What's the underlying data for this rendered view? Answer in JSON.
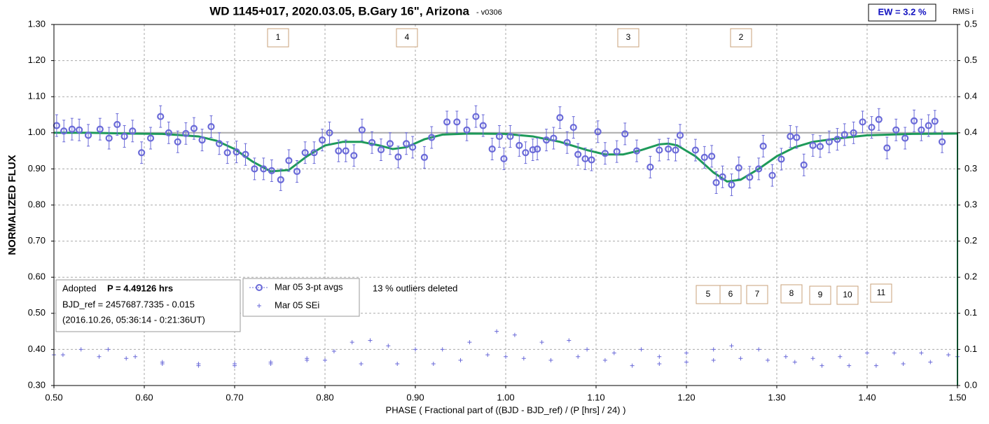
{
  "chart_data": {
    "type": "scatter",
    "title": "WD 1145+017, 2020.03.05, B.Gary 16\", Arizona",
    "subtitle": "-  v0306",
    "ew_label": "EW = 3.2 %",
    "y2_title": "RMS i",
    "xlabel": "PHASE ( Fractional part of ((BJD - BJD_ref) / (P [hrs] / 24) )",
    "ylabel": "NORMALIZED FLUX",
    "xlim": [
      0.5,
      1.5
    ],
    "xticks": [
      {
        "value": 0.5,
        "label": "0.50"
      },
      {
        "value": 0.6,
        "label": "0.60"
      },
      {
        "value": 0.7,
        "label": "0.70"
      },
      {
        "value": 0.8,
        "label": "0.80"
      },
      {
        "value": 0.9,
        "label": "0.90"
      },
      {
        "value": 1.0,
        "label": "1.00"
      },
      {
        "value": 1.1,
        "label": "1.10"
      },
      {
        "value": 1.2,
        "label": "1.20"
      },
      {
        "value": 1.3,
        "label": "1.30"
      },
      {
        "value": 1.4,
        "label": "1.40"
      },
      {
        "value": 1.5,
        "label": "1.50"
      }
    ],
    "ylim": [
      0.3,
      1.3
    ],
    "yticks": [
      {
        "value": 0.3,
        "label": "0.30"
      },
      {
        "value": 0.4,
        "label": "0.40"
      },
      {
        "value": 0.5,
        "label": "0.50"
      },
      {
        "value": 0.6,
        "label": "0.60"
      },
      {
        "value": 0.7,
        "label": "0.70"
      },
      {
        "value": 0.8,
        "label": "0.80"
      },
      {
        "value": 0.9,
        "label": "0.90"
      },
      {
        "value": 1.0,
        "label": "1.00"
      },
      {
        "value": 1.1,
        "label": "1.10"
      },
      {
        "value": 1.2,
        "label": "1.20"
      },
      {
        "value": 1.3,
        "label": "1.30"
      }
    ],
    "y2lim": [
      0,
      0.5
    ],
    "y2ticks": [
      {
        "value": 0,
        "label": "0.0"
      },
      {
        "value": 0.05,
        "label": "0.1"
      },
      {
        "value": 0.1,
        "label": "0.1"
      },
      {
        "value": 0.15,
        "label": "0.2"
      },
      {
        "value": 0.2,
        "label": "0.2"
      },
      {
        "value": 0.25,
        "label": "0.3"
      },
      {
        "value": 0.3,
        "label": "0.3"
      },
      {
        "value": 0.35,
        "label": "0.4"
      },
      {
        "value": 0.4,
        "label": "0.4"
      },
      {
        "value": 0.45,
        "label": "0.5"
      },
      {
        "value": 0.5,
        "label": "0.5"
      }
    ],
    "grid": true,
    "reference_line": 1.0,
    "series": [
      {
        "name": "Mar 05 3-pt avgs",
        "color": "#6a6ad8",
        "marker": "circle",
        "error": 0.03,
        "x": [
          0.503,
          0.511,
          0.52,
          0.528,
          0.538,
          0.551,
          0.561,
          0.57,
          0.578,
          0.587,
          0.597,
          0.607,
          0.618,
          0.627,
          0.637,
          0.646,
          0.655,
          0.664,
          0.674,
          0.683,
          0.692,
          0.702,
          0.712,
          0.722,
          0.732,
          0.741,
          0.751,
          0.76,
          0.769,
          0.778,
          0.788,
          0.797,
          0.805,
          0.815,
          0.823,
          0.832,
          0.841,
          0.852,
          0.862,
          0.872,
          0.881,
          0.89,
          0.897,
          0.91,
          0.918,
          0.935,
          0.946,
          0.957,
          0.967,
          0.975,
          0.985,
          0.993,
          0.998,
          1.005,
          1.015,
          1.022,
          1.03,
          1.035,
          1.045,
          1.053,
          1.06,
          1.068,
          1.075,
          1.08,
          1.088,
          1.095,
          1.102,
          1.11,
          1.123,
          1.132,
          1.145,
          1.16,
          1.17,
          1.18,
          1.188,
          1.193,
          1.21,
          1.22,
          1.228,
          1.233,
          1.24,
          1.25,
          1.258,
          1.27,
          1.28,
          1.285,
          1.295,
          1.305,
          1.315,
          1.322,
          1.33,
          1.34,
          1.348,
          1.358,
          1.367,
          1.375,
          1.385,
          1.395,
          1.405,
          1.413,
          1.422,
          1.432,
          1.442,
          1.452,
          1.46,
          1.468,
          1.475,
          1.483
        ],
        "values": [
          1.02,
          1.005,
          1.01,
          1.008,
          0.993,
          1.01,
          0.985,
          1.023,
          0.99,
          1.005,
          0.945,
          0.985,
          1.045,
          1.0,
          0.975,
          0.998,
          1.012,
          0.98,
          1.017,
          0.97,
          0.945,
          0.947,
          0.94,
          0.9,
          0.9,
          0.895,
          0.87,
          0.923,
          0.893,
          0.945,
          0.945,
          0.98,
          1.0,
          0.95,
          0.95,
          0.937,
          1.008,
          0.973,
          0.953,
          0.97,
          0.933,
          0.97,
          0.96,
          0.932,
          0.987,
          1.03,
          1.03,
          1.008,
          1.045,
          1.02,
          0.955,
          0.99,
          0.928,
          0.99,
          0.965,
          0.945,
          0.953,
          0.955,
          0.98,
          0.985,
          1.042,
          0.973,
          1.015,
          0.94,
          0.928,
          0.925,
          1.003,
          0.943,
          0.948,
          0.997,
          0.95,
          0.905,
          0.952,
          0.955,
          0.952,
          0.993,
          0.952,
          0.932,
          0.935,
          0.862,
          0.878,
          0.856,
          0.903,
          0.877,
          0.9,
          0.963,
          0.882,
          0.927,
          0.99,
          0.987,
          0.911,
          0.965,
          0.962,
          0.975,
          0.982,
          0.995,
          1.0,
          1.03,
          1.015,
          1.037,
          0.958,
          1.008,
          0.985,
          1.033,
          1.008,
          1.02,
          1.032,
          0.975
        ]
      },
      {
        "name": "Mar 05 SEi",
        "color": "#6a6ad8",
        "marker": "cross",
        "x": [
          0.5,
          0.53,
          0.56,
          0.59,
          0.62,
          0.66,
          0.7,
          0.74,
          0.78,
          0.81,
          0.83,
          0.85,
          0.87,
          0.9,
          0.93,
          0.96,
          0.99,
          1.01,
          1.04,
          1.07,
          1.09,
          1.12,
          1.15,
          1.17,
          1.2,
          1.23,
          1.25,
          1.28,
          1.31,
          1.34,
          1.37,
          1.4,
          1.43,
          1.46,
          1.49,
          0.51,
          0.55,
          0.58,
          0.62,
          0.66,
          0.7,
          0.74,
          0.78,
          0.8,
          0.84,
          0.88,
          0.92,
          0.95,
          0.98,
          1.0,
          1.02,
          1.05,
          1.08,
          1.11,
          1.14,
          1.17,
          1.2,
          1.23,
          1.26,
          1.29,
          1.32,
          1.35,
          1.38,
          1.41,
          1.44,
          1.47,
          1.5
        ],
        "values": [
          0.385,
          0.4,
          0.4,
          0.38,
          0.365,
          0.36,
          0.36,
          0.365,
          0.375,
          0.395,
          0.42,
          0.425,
          0.41,
          0.4,
          0.4,
          0.42,
          0.45,
          0.44,
          0.42,
          0.425,
          0.4,
          0.39,
          0.4,
          0.38,
          0.39,
          0.4,
          0.41,
          0.4,
          0.38,
          0.375,
          0.38,
          0.39,
          0.39,
          0.39,
          0.385,
          0.385,
          0.38,
          0.375,
          0.36,
          0.355,
          0.355,
          0.36,
          0.37,
          0.37,
          0.36,
          0.36,
          0.36,
          0.37,
          0.385,
          0.38,
          0.375,
          0.37,
          0.38,
          0.37,
          0.355,
          0.36,
          0.365,
          0.37,
          0.375,
          0.37,
          0.365,
          0.355,
          0.355,
          0.355,
          0.36,
          0.365,
          0.38
        ]
      },
      {
        "type": "line",
        "color": "#1e9a5a",
        "x": [
          0.5,
          0.54,
          0.58,
          0.62,
          0.66,
          0.68,
          0.7,
          0.72,
          0.74,
          0.76,
          0.78,
          0.8,
          0.82,
          0.84,
          0.86,
          0.875,
          0.89,
          0.91,
          0.93,
          0.96,
          1.0,
          1.03,
          1.06,
          1.09,
          1.11,
          1.13,
          1.15,
          1.17,
          1.18,
          1.19,
          1.21,
          1.23,
          1.245,
          1.26,
          1.28,
          1.3,
          1.32,
          1.34,
          1.37,
          1.4,
          1.45,
          1.5
        ],
        "values": [
          1.0,
          1.0,
          0.998,
          0.997,
          0.99,
          0.978,
          0.955,
          0.92,
          0.893,
          0.897,
          0.935,
          0.965,
          0.975,
          0.975,
          0.965,
          0.955,
          0.96,
          0.982,
          0.995,
          0.998,
          0.997,
          0.99,
          0.975,
          0.952,
          0.94,
          0.94,
          0.952,
          0.968,
          0.97,
          0.965,
          0.935,
          0.89,
          0.865,
          0.87,
          0.9,
          0.935,
          0.96,
          0.975,
          0.985,
          0.993,
          0.997,
          0.998
        ]
      }
    ],
    "info": {
      "prefix": "Adopted ",
      "period": "P = 4.49126 hrs",
      "bjd": "BJD_ref = 2457687.7335 - 0.015",
      "date": "(2016.10.26, 05:36:14 - 0:21:36UT)"
    },
    "outliers": "13 % outliers deleted",
    "annotations": [
      "1",
      "4",
      "3",
      "2",
      "5",
      "6",
      "7",
      "8",
      "9",
      "10",
      "11"
    ]
  }
}
